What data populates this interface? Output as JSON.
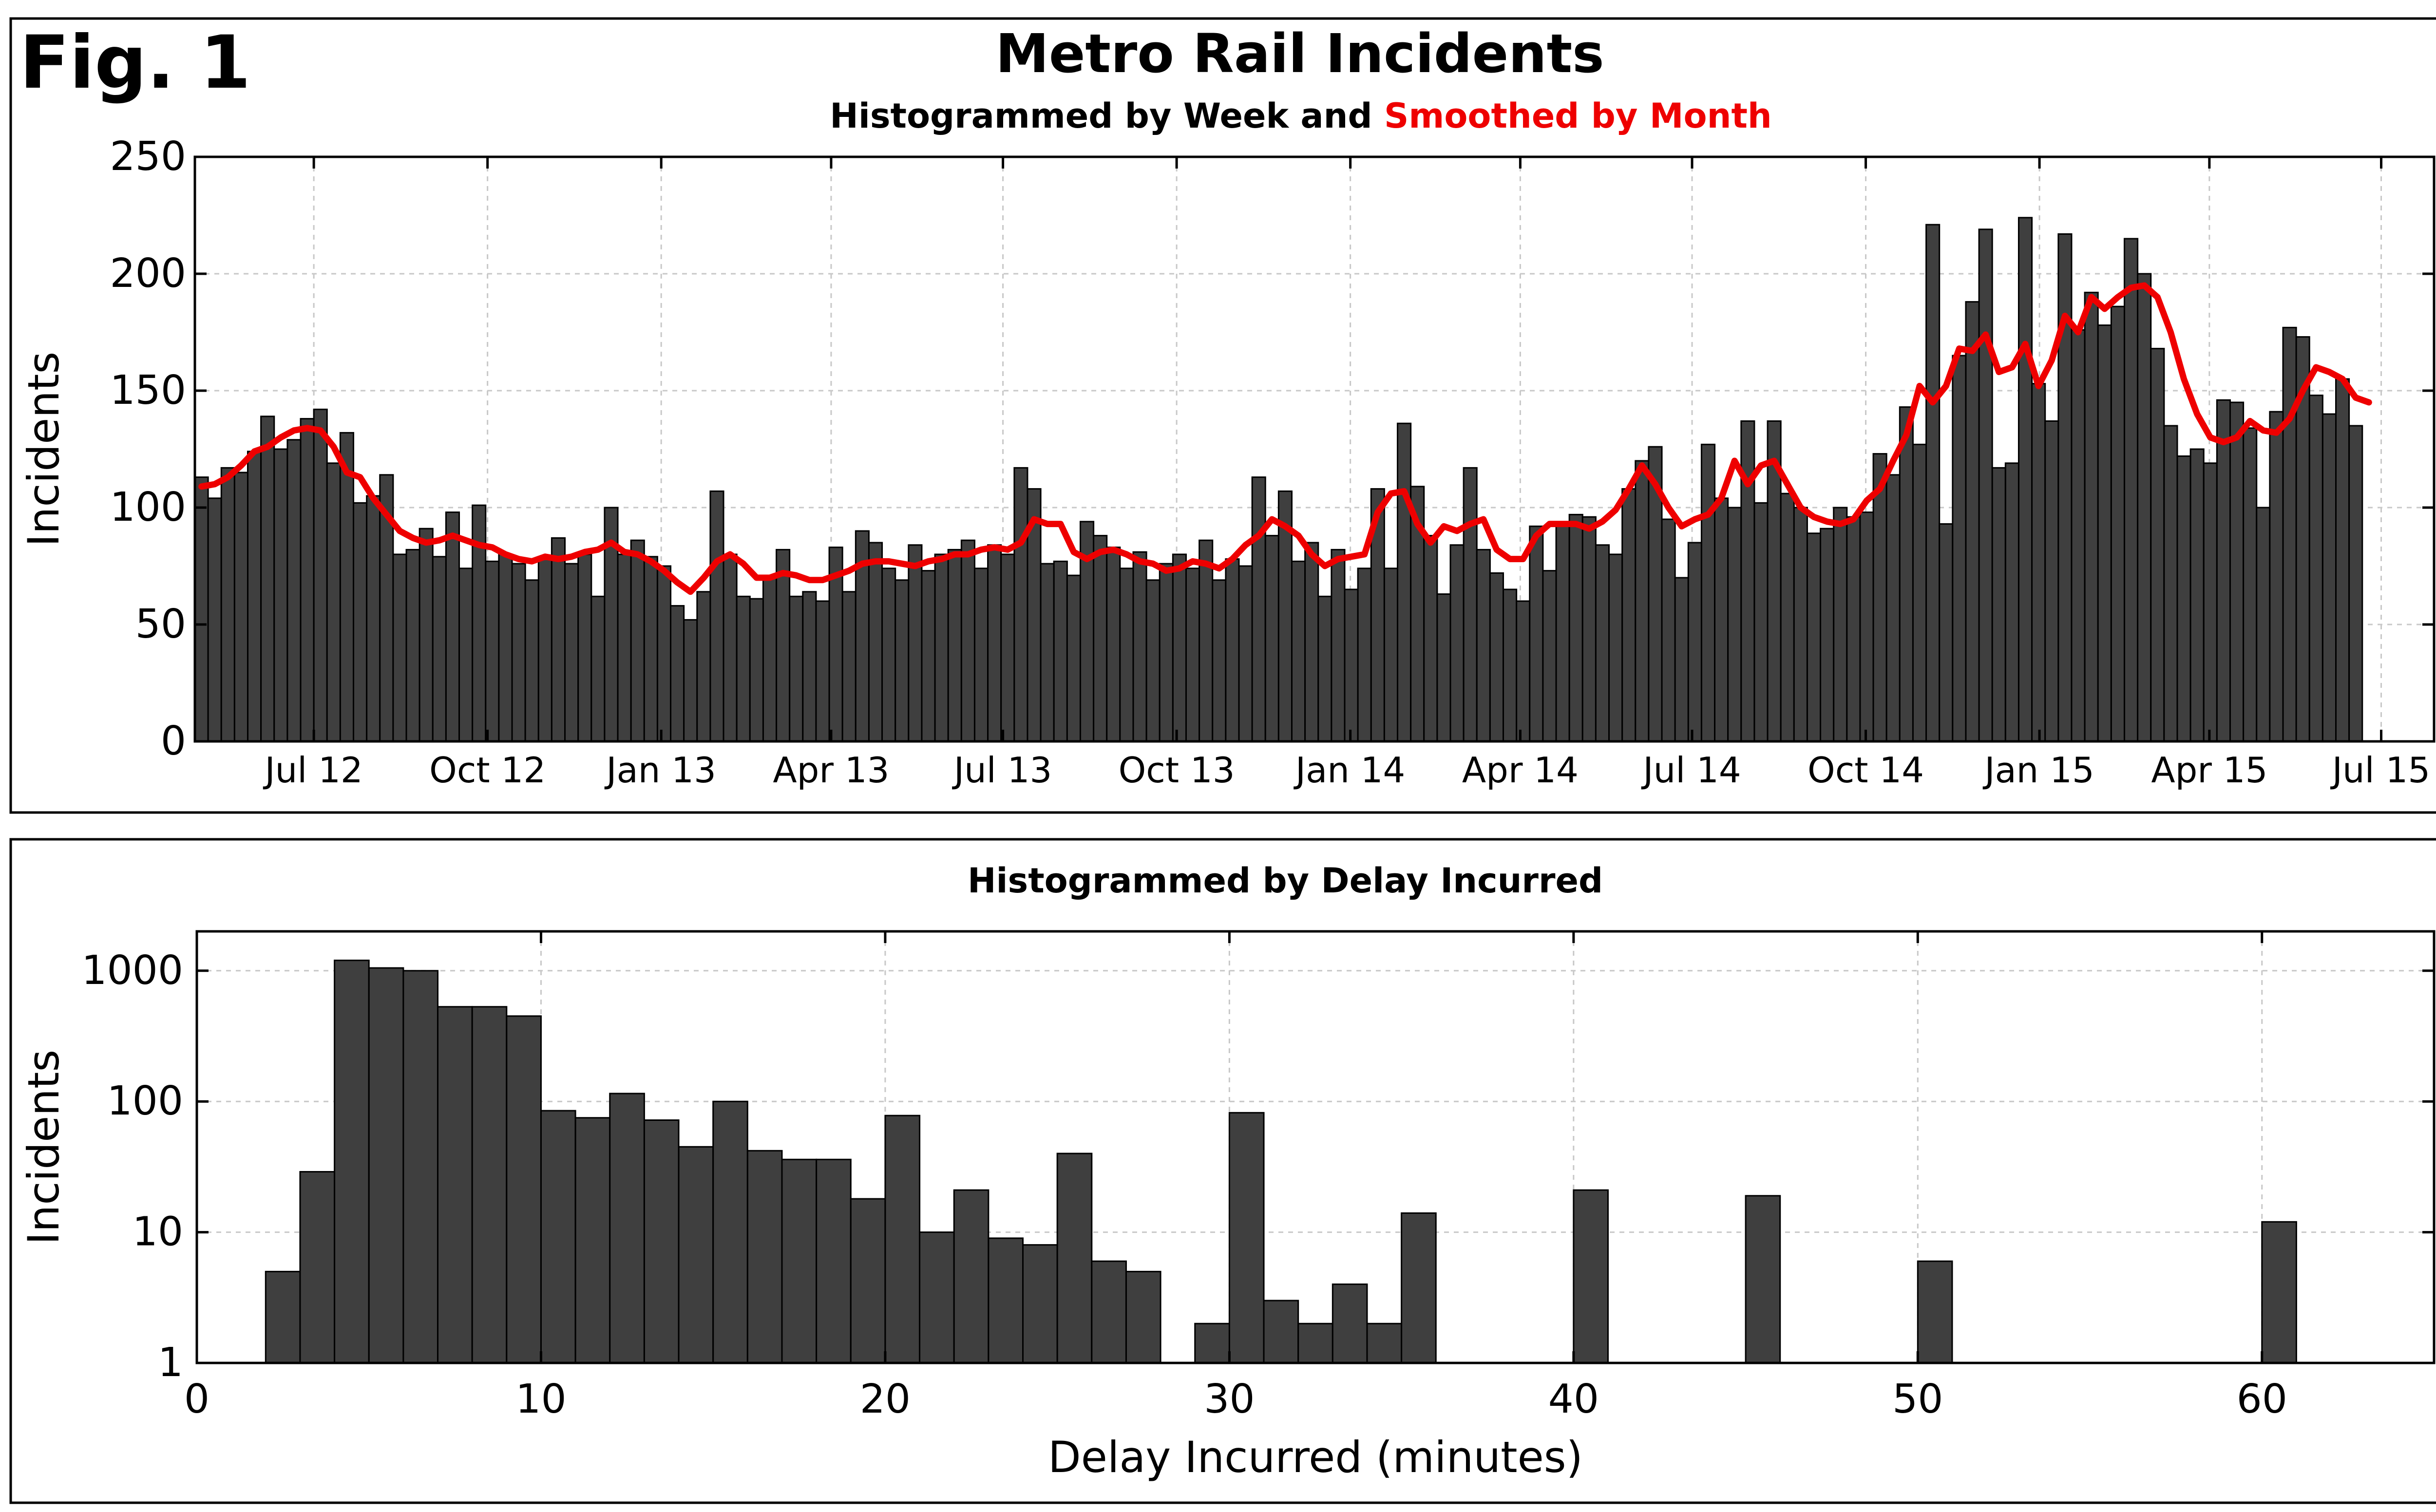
{
  "figure": {
    "label": "Fig. 1",
    "title": "Metro Rail Incidents"
  },
  "chart_data": [
    {
      "type": "bar",
      "subtitle_part1": "Histogrammed by Week and",
      "subtitle_part2": "Smoothed by Month",
      "subtitle_part2_color": "#ee0000",
      "bar_color": "#3f3f3f",
      "ylabel": "Incidents",
      "ylim": [
        0,
        250
      ],
      "yticks": [
        0,
        50,
        100,
        150,
        200,
        250
      ],
      "grid": true,
      "x_start": "2012-04-29",
      "x_end": "2015-07-29",
      "xticks": [
        {
          "date": "2012-07-01",
          "label": "Jul 12"
        },
        {
          "date": "2012-10-01",
          "label": "Oct 12"
        },
        {
          "date": "2013-01-01",
          "label": "Jan 13"
        },
        {
          "date": "2013-04-01",
          "label": "Apr 13"
        },
        {
          "date": "2013-07-01",
          "label": "Jul 13"
        },
        {
          "date": "2013-10-01",
          "label": "Oct 13"
        },
        {
          "date": "2014-01-01",
          "label": "Jan 14"
        },
        {
          "date": "2014-04-01",
          "label": "Apr 14"
        },
        {
          "date": "2014-07-01",
          "label": "Jul 14"
        },
        {
          "date": "2014-10-01",
          "label": "Oct 14"
        },
        {
          "date": "2015-01-01",
          "label": "Jan 15"
        },
        {
          "date": "2015-04-01",
          "label": "Apr 15"
        },
        {
          "date": "2015-07-01",
          "label": "Jul 15"
        }
      ],
      "first_week": "2012-04-29",
      "weekly_incidents": [
        113,
        104,
        117,
        115,
        124,
        139,
        125,
        129,
        138,
        142,
        119,
        132,
        102,
        105,
        114,
        80,
        82,
        91,
        79,
        98,
        74,
        101,
        77,
        80,
        76,
        69,
        78,
        87,
        76,
        80,
        62,
        100,
        80,
        86,
        79,
        75,
        58,
        52,
        64,
        107,
        80,
        62,
        61,
        70,
        82,
        62,
        64,
        60,
        83,
        64,
        90,
        85,
        74,
        69,
        84,
        73,
        80,
        82,
        86,
        74,
        84,
        80,
        117,
        108,
        76,
        77,
        71,
        94,
        88,
        83,
        74,
        81,
        69,
        76,
        80,
        74,
        86,
        69,
        78,
        75,
        113,
        88,
        107,
        77,
        85,
        62,
        82,
        65,
        74,
        108,
        74,
        136,
        109,
        88,
        63,
        84,
        117,
        82,
        72,
        65,
        60,
        92,
        73,
        93,
        97,
        96,
        84,
        80,
        108,
        120,
        126,
        95,
        70,
        85,
        127,
        104,
        100,
        137,
        102,
        137,
        106,
        100,
        89,
        91,
        100,
        96,
        98,
        123,
        114,
        143,
        127,
        221,
        93,
        165,
        188,
        219,
        117,
        119,
        224,
        153,
        137,
        217,
        176,
        192,
        178,
        186,
        215,
        200,
        168,
        135,
        122,
        125,
        119,
        146,
        145,
        134,
        100,
        141,
        177,
        173,
        148,
        140,
        155,
        135
      ],
      "smoothed_incidents": [
        109,
        110,
        113,
        118,
        124,
        126,
        130,
        133,
        134,
        133,
        126,
        115,
        113,
        104,
        97,
        90,
        87,
        85,
        86,
        88,
        86,
        84,
        83,
        80,
        78,
        77,
        79,
        78,
        79,
        81,
        82,
        85,
        81,
        80,
        77,
        73,
        68,
        64,
        70,
        77,
        80,
        76,
        70,
        70,
        72,
        71,
        69,
        69,
        71,
        73,
        76,
        77,
        77,
        76,
        75,
        77,
        78,
        80,
        80,
        82,
        83,
        82,
        85,
        95,
        93,
        93,
        81,
        78,
        81,
        82,
        80,
        77,
        76,
        73,
        74,
        77,
        76,
        74,
        78,
        84,
        88,
        95,
        92,
        88,
        80,
        75,
        78,
        79,
        80,
        98,
        106,
        107,
        93,
        85,
        92,
        90,
        93,
        95,
        82,
        78,
        78,
        88,
        93,
        93,
        93,
        91,
        94,
        99,
        108,
        118,
        110,
        100,
        92,
        95,
        97,
        104,
        120,
        110,
        118,
        120,
        110,
        100,
        96,
        94,
        93,
        95,
        103,
        108,
        120,
        131,
        152,
        145,
        152,
        168,
        167,
        174,
        158,
        160,
        170,
        152,
        163,
        182,
        175,
        190,
        185,
        190,
        194,
        195,
        190,
        175,
        155,
        140,
        130,
        128,
        130,
        137,
        133,
        132,
        138,
        150,
        160,
        158,
        155,
        147,
        145
      ]
    },
    {
      "type": "bar",
      "subtitle": "Histogrammed by Delay Incurred",
      "bar_color": "#3f3f3f",
      "xlabel": "Delay Incurred (minutes)",
      "ylabel": "Incidents",
      "yscale": "log",
      "ylim": [
        1,
        2000
      ],
      "yticks": [
        1,
        10,
        100,
        1000
      ],
      "ytick_labels": [
        "1",
        "10",
        "100",
        "1000"
      ],
      "xlim": [
        0,
        65
      ],
      "xticks": [
        0,
        10,
        20,
        30,
        40,
        50,
        60
      ],
      "xtick_labels": [
        "0",
        "10",
        "20",
        "30",
        "40",
        "50",
        "60"
      ],
      "bin_width": 1,
      "grid": true,
      "bins": [
        {
          "x": 2,
          "value": 5
        },
        {
          "x": 3,
          "value": 29
        },
        {
          "x": 4,
          "value": 1200
        },
        {
          "x": 5,
          "value": 1050
        },
        {
          "x": 6,
          "value": 1000
        },
        {
          "x": 7,
          "value": 530
        },
        {
          "x": 8,
          "value": 530
        },
        {
          "x": 9,
          "value": 450
        },
        {
          "x": 10,
          "value": 85
        },
        {
          "x": 11,
          "value": 75
        },
        {
          "x": 12,
          "value": 115
        },
        {
          "x": 13,
          "value": 72
        },
        {
          "x": 14,
          "value": 45
        },
        {
          "x": 15,
          "value": 100
        },
        {
          "x": 16,
          "value": 42
        },
        {
          "x": 17,
          "value": 36
        },
        {
          "x": 18,
          "value": 36
        },
        {
          "x": 19,
          "value": 18
        },
        {
          "x": 20,
          "value": 78
        },
        {
          "x": 21,
          "value": 10
        },
        {
          "x": 22,
          "value": 21
        },
        {
          "x": 23,
          "value": 9
        },
        {
          "x": 24,
          "value": 8
        },
        {
          "x": 25,
          "value": 40
        },
        {
          "x": 26,
          "value": 6
        },
        {
          "x": 27,
          "value": 5
        },
        {
          "x": 29,
          "value": 2
        },
        {
          "x": 30,
          "value": 82
        },
        {
          "x": 31,
          "value": 3
        },
        {
          "x": 32,
          "value": 2
        },
        {
          "x": 33,
          "value": 4
        },
        {
          "x": 34,
          "value": 2
        },
        {
          "x": 35,
          "value": 14
        },
        {
          "x": 40,
          "value": 21
        },
        {
          "x": 45,
          "value": 19
        },
        {
          "x": 50,
          "value": 6
        },
        {
          "x": 60,
          "value": 12
        }
      ]
    }
  ]
}
